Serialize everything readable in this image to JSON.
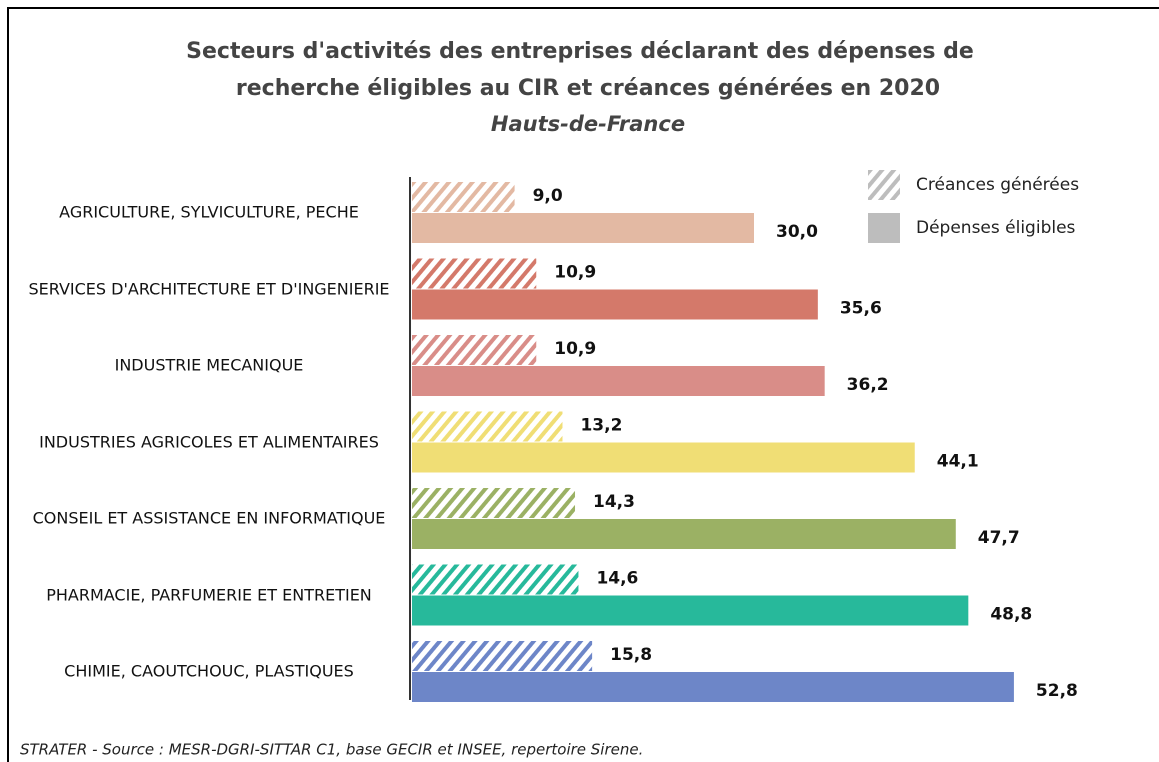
{
  "chart_data": {
    "type": "bar",
    "orientation": "horizontal",
    "title": [
      "Secteurs d'activités des entreprises déclarant des dépenses de",
      "recherche éligibles au CIR et créances générées en 2020"
    ],
    "subtitle": "Hauts-de-France",
    "categories": [
      "AGRICULTURE, SYLVICULTURE, PECHE",
      "SERVICES D'ARCHITECTURE ET D'INGENIERIE",
      "INDUSTRIE MECANIQUE",
      "INDUSTRIES AGRICOLES ET ALIMENTAIRES",
      "CONSEIL ET ASSISTANCE EN INFORMATIQUE",
      "PHARMACIE, PARFUMERIE ET ENTRETIEN",
      "CHIMIE, CAOUTCHOUC, PLASTIQUES"
    ],
    "colors": [
      "#e3b9a3",
      "#d4796a",
      "#d98d88",
      "#f0de75",
      "#9bb164",
      "#27b99b",
      "#6d86c8"
    ],
    "series": [
      {
        "name": "Créances générées",
        "color": "#bdbdbd",
        "pattern": "hatch",
        "values": [
          9.0,
          10.9,
          10.9,
          13.2,
          14.3,
          14.6,
          15.8
        ],
        "value_labels": [
          "9,0",
          "10,9",
          "10,9",
          "13,2",
          "14,3",
          "14,6",
          "15,8"
        ]
      },
      {
        "name": "Dépenses éligibles",
        "color": "#bdbdbd",
        "pattern": "solid",
        "values": [
          30.0,
          35.6,
          36.2,
          44.1,
          47.7,
          48.8,
          52.8
        ],
        "value_labels": [
          "30,0",
          "35,6",
          "36,2",
          "44,1",
          "47,7",
          "48,8",
          "52,8"
        ]
      }
    ],
    "legend": "top-right",
    "source": "STRATER - Source : MESR-DGRI-SITTAR C1, base GECIR et INSEE, repertoire Sirene."
  }
}
